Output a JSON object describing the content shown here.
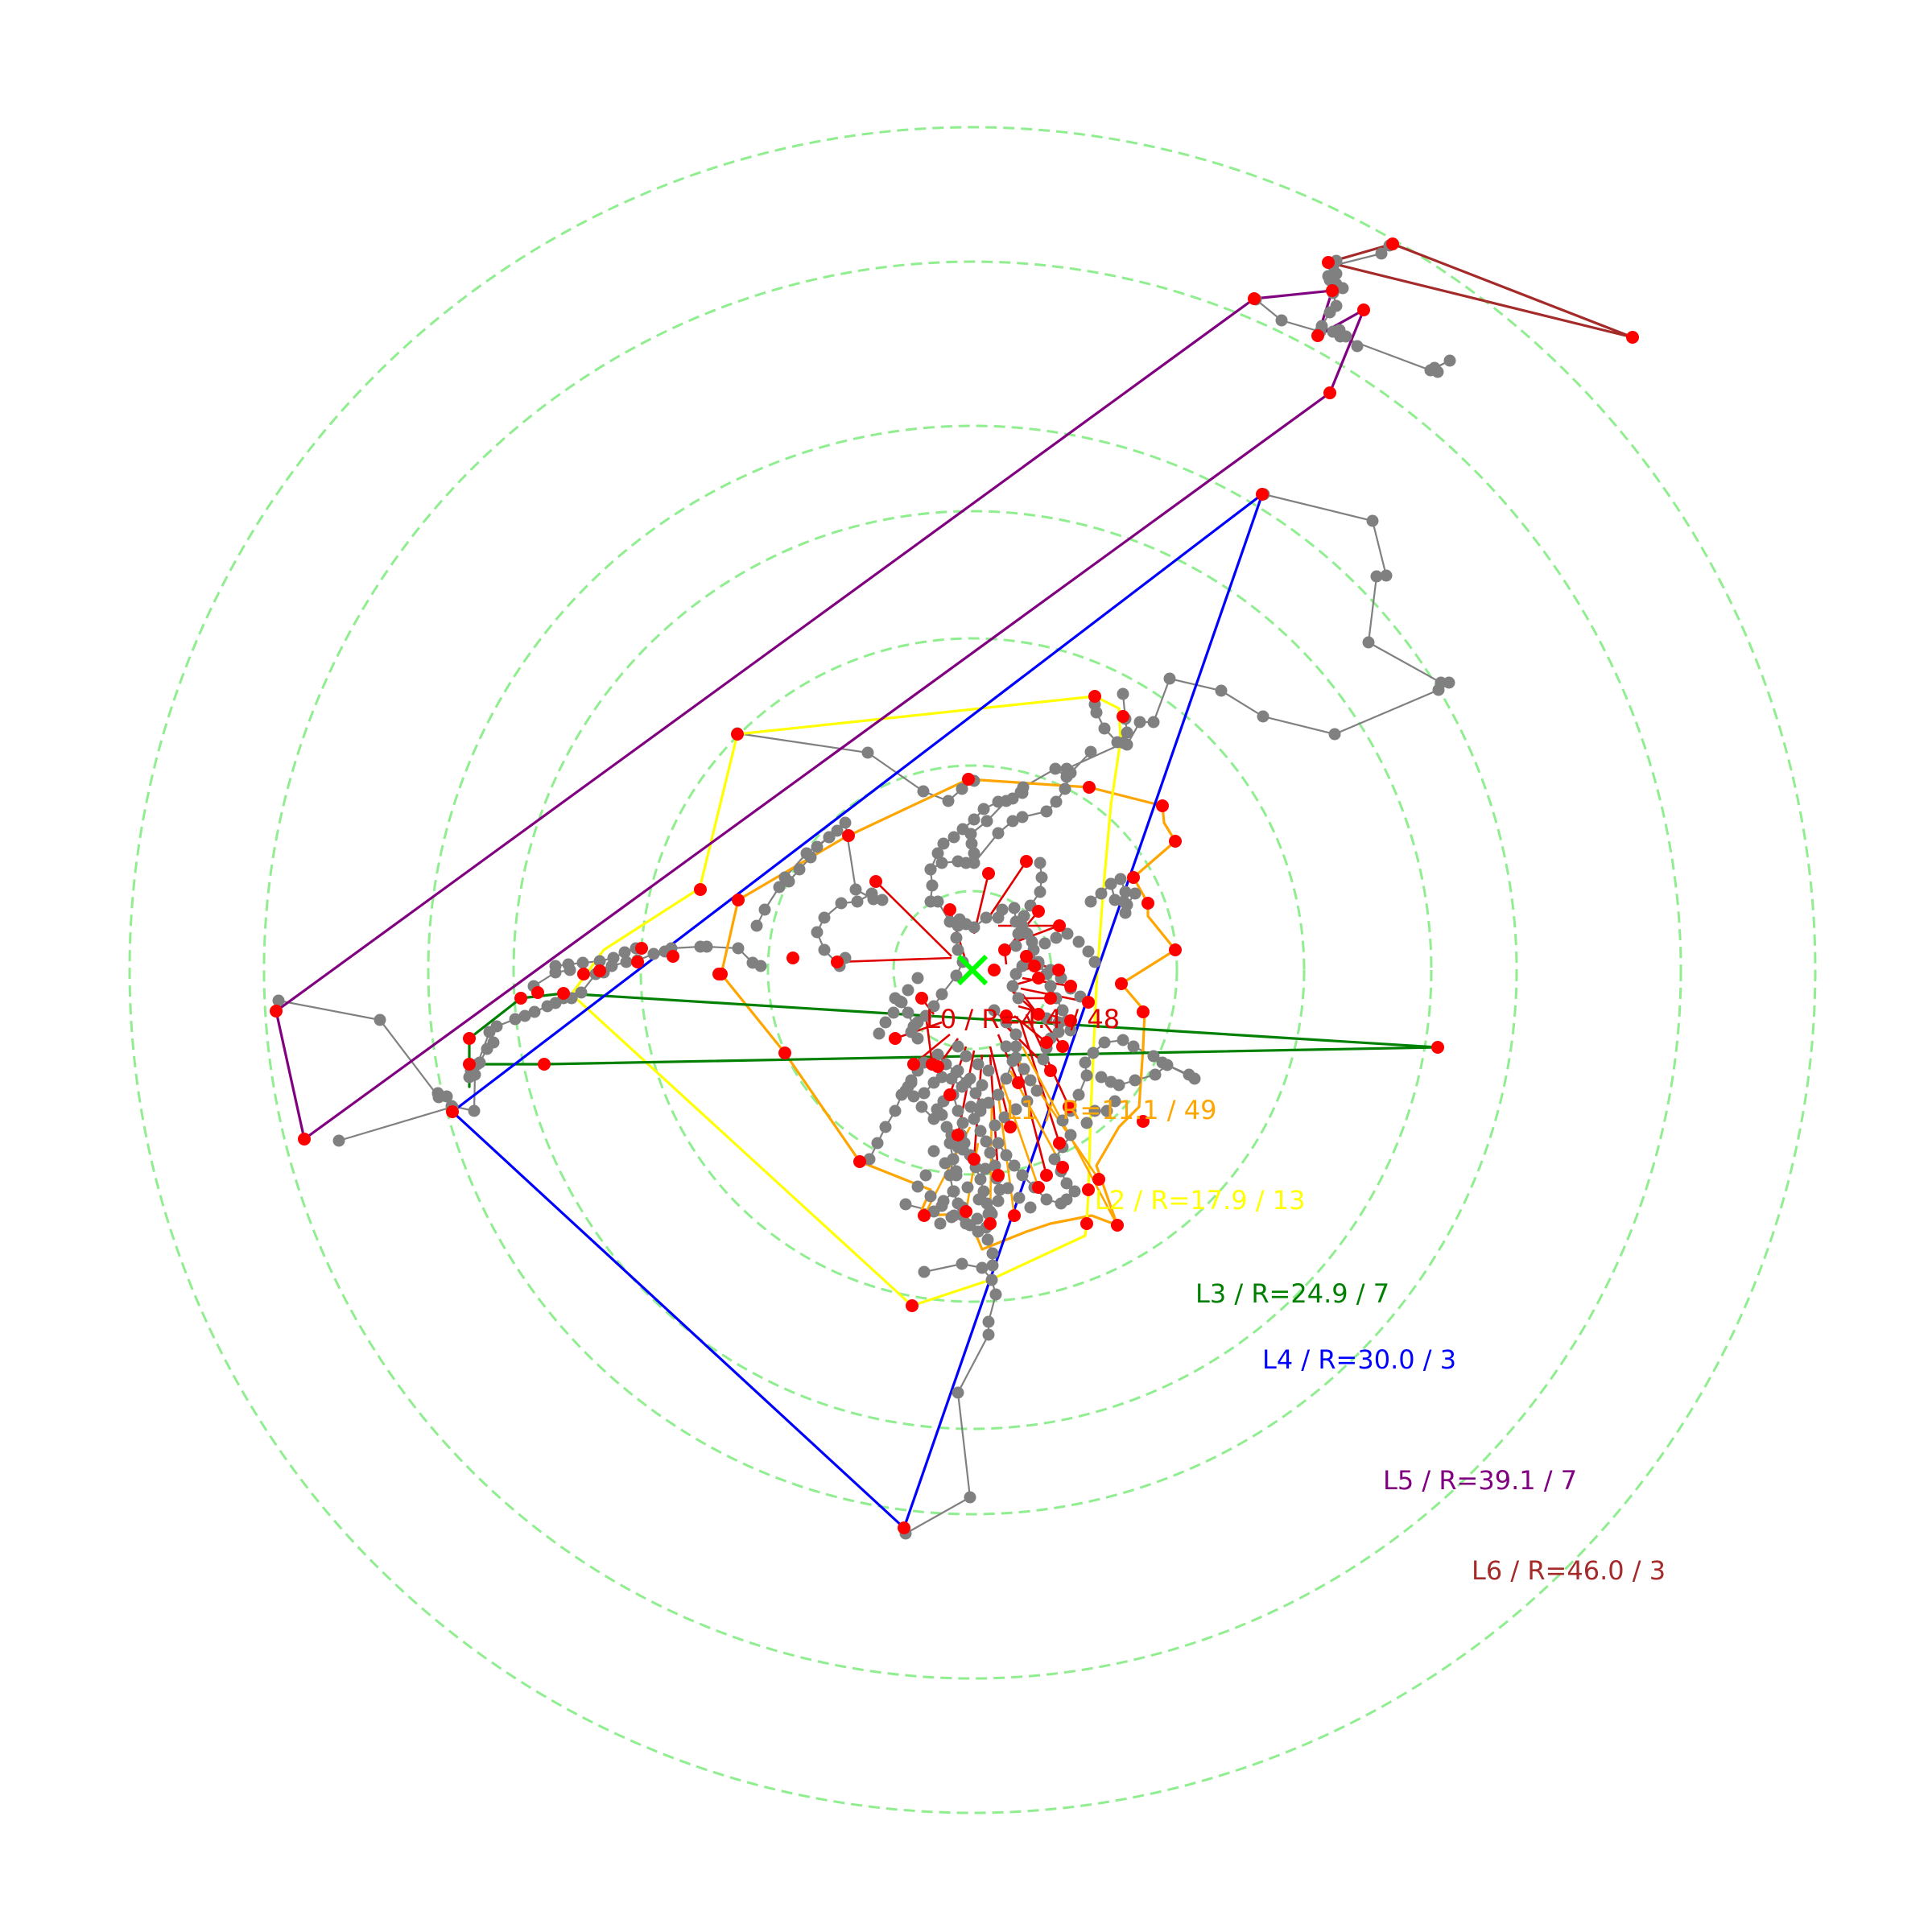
{
  "levels": [
    {
      "id": "L0",
      "text": "L0 / R=4.4 / 48",
      "color": "#e00000"
    },
    {
      "id": "L1",
      "text": "L1 / R=11.1 / 49",
      "color": "#ffa500"
    },
    {
      "id": "L2",
      "text": "L2 / R=17.9 / 13",
      "color": "#ffff00"
    },
    {
      "id": "L3",
      "text": "L3 / R=24.9 / 7",
      "color": "#008000"
    },
    {
      "id": "L4",
      "text": "L4 / R=30.0 / 3",
      "color": "#0000ff"
    },
    {
      "id": "L5",
      "text": "L5 / R=39.1 / 7",
      "color": "#800080"
    },
    {
      "id": "L6",
      "text": "L6 / R=46.0 / 3",
      "color": "#a52a2a"
    }
  ],
  "colors": {
    "ring": "#90ee90",
    "edge": "#808080",
    "node": "#808080",
    "vertex": "#ff0000",
    "center_marker": "#00ff00"
  },
  "icons": {
    "center": "cross-mark-icon"
  }
}
